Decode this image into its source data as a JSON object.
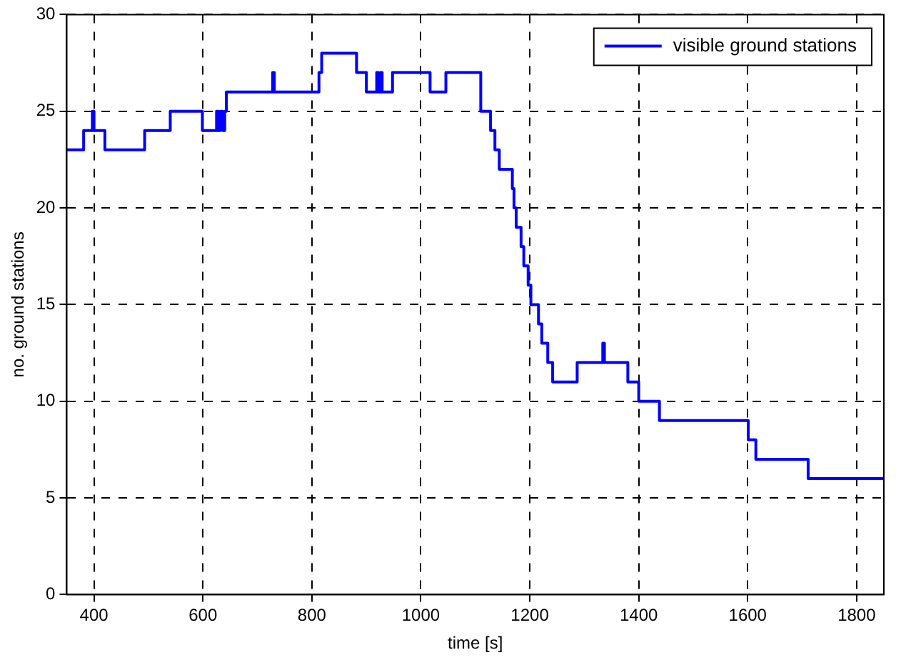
{
  "chart_data": {
    "type": "step",
    "xlabel": "time [s]",
    "ylabel": "no. ground stations",
    "xlim": [
      350,
      1850
    ],
    "xticks": [
      400,
      600,
      800,
      1000,
      1200,
      1400,
      1600,
      1800
    ],
    "ylim": [
      0,
      30
    ],
    "yticks": [
      0,
      5,
      10,
      15,
      20,
      25,
      30
    ],
    "grid": true,
    "legend": "top right",
    "series": [
      {
        "name": "visible ground stations",
        "color": "#0000ff",
        "x": [
          350,
          381,
          397,
          400,
          420,
          493,
          540,
          599,
          625,
          628,
          632,
          636,
          640,
          643,
          728,
          731,
          813,
          818,
          882,
          900,
          919,
          922,
          926,
          929,
          948,
          1017,
          1046,
          1110,
          1128,
          1136,
          1144,
          1168,
          1171,
          1175,
          1184,
          1189,
          1197,
          1202,
          1216,
          1222,
          1233,
          1242,
          1287,
          1334,
          1337,
          1380,
          1400,
          1438,
          1601,
          1615,
          1711,
          1850
        ],
        "values": [
          23,
          24,
          25,
          24,
          23,
          24,
          25,
          24,
          25,
          24,
          25,
          24,
          25,
          26,
          27,
          26,
          27,
          28,
          27,
          26,
          27,
          26,
          27,
          26,
          27,
          26,
          27,
          25,
          24,
          23,
          22,
          21,
          20,
          19,
          18,
          17,
          16,
          15,
          14,
          13,
          12,
          11,
          12,
          13,
          12,
          11,
          10,
          9,
          8,
          7,
          6,
          6
        ]
      }
    ]
  }
}
